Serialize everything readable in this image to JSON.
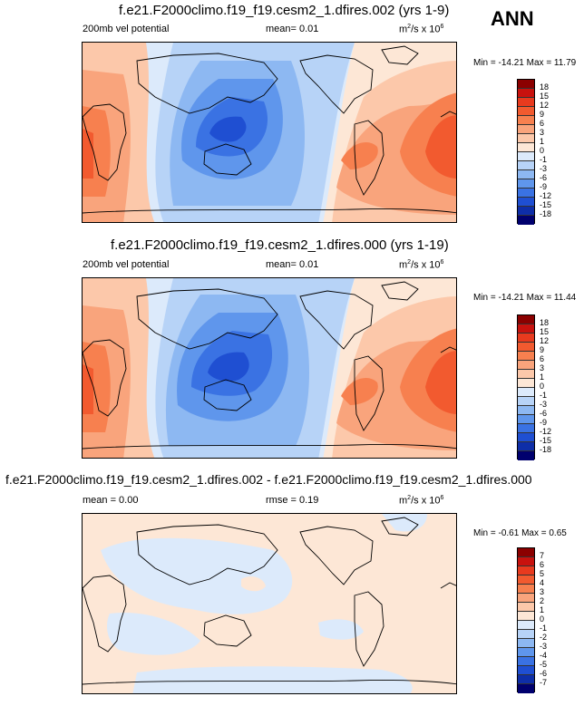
{
  "season": "ANN",
  "panels": [
    {
      "title": "f.e21.F2000climo.f19_f19.cesm2_1.dfires.002 (yrs 1-9)",
      "left_label": "200mb vel potential",
      "mid_label": "mean=  0.01",
      "units": "m²/s x 10⁶",
      "minmax": "Min = -14.21 Max = 11.79",
      "colorbar": {
        "labels": [
          "18",
          "15",
          "12",
          "9",
          "6",
          "3",
          "1",
          "0",
          "-1",
          "-3",
          "-6",
          "-9",
          "-12",
          "-15",
          "-18"
        ],
        "colors": [
          "#8b0000",
          "#c8120e",
          "#e83a1e",
          "#f25a2f",
          "#f7804f",
          "#f9a47c",
          "#fcc8aa",
          "#fde7d6",
          "#dceafb",
          "#b7d3f7",
          "#8db8f2",
          "#5f96ec",
          "#3a72e3",
          "#1f4fd2",
          "#0e2ea8",
          "#00006e"
        ]
      }
    },
    {
      "title": "f.e21.F2000climo.f19_f19.cesm2_1.dfires.000 (yrs 1-19)",
      "left_label": "200mb vel potential",
      "mid_label": "mean=  0.01",
      "units": "m²/s x 10⁶",
      "minmax": "Min = -14.21 Max = 11.44",
      "colorbar": {
        "labels": [
          "18",
          "15",
          "12",
          "9",
          "6",
          "3",
          "1",
          "0",
          "-1",
          "-3",
          "-6",
          "-9",
          "-12",
          "-15",
          "-18"
        ],
        "colors": [
          "#8b0000",
          "#c8120e",
          "#e83a1e",
          "#f25a2f",
          "#f7804f",
          "#f9a47c",
          "#fcc8aa",
          "#fde7d6",
          "#dceafb",
          "#b7d3f7",
          "#8db8f2",
          "#5f96ec",
          "#3a72e3",
          "#1f4fd2",
          "#0e2ea8",
          "#00006e"
        ]
      }
    },
    {
      "title": "f.e21.F2000climo.f19_f19.cesm2_1.dfires.002 - f.e21.F2000climo.f19_f19.cesm2_1.dfires.000",
      "left_label": "mean =  0.00",
      "mid_label": "rmse =  0.19",
      "units": "m²/s x 10⁶",
      "minmax": "Min = -0.61 Max =  0.65",
      "colorbar": {
        "labels": [
          "7",
          "6",
          "5",
          "4",
          "3",
          "2",
          "1",
          "0",
          "-1",
          "-2",
          "-3",
          "-4",
          "-5",
          "-6",
          "-7"
        ],
        "colors": [
          "#8b0000",
          "#c8120e",
          "#e83a1e",
          "#f25a2f",
          "#f7804f",
          "#f9a47c",
          "#fcc8aa",
          "#fde7d6",
          "#dceafb",
          "#b7d3f7",
          "#8db8f2",
          "#5f96ec",
          "#3a72e3",
          "#1f4fd2",
          "#0e2ea8",
          "#00006e"
        ]
      }
    }
  ]
}
